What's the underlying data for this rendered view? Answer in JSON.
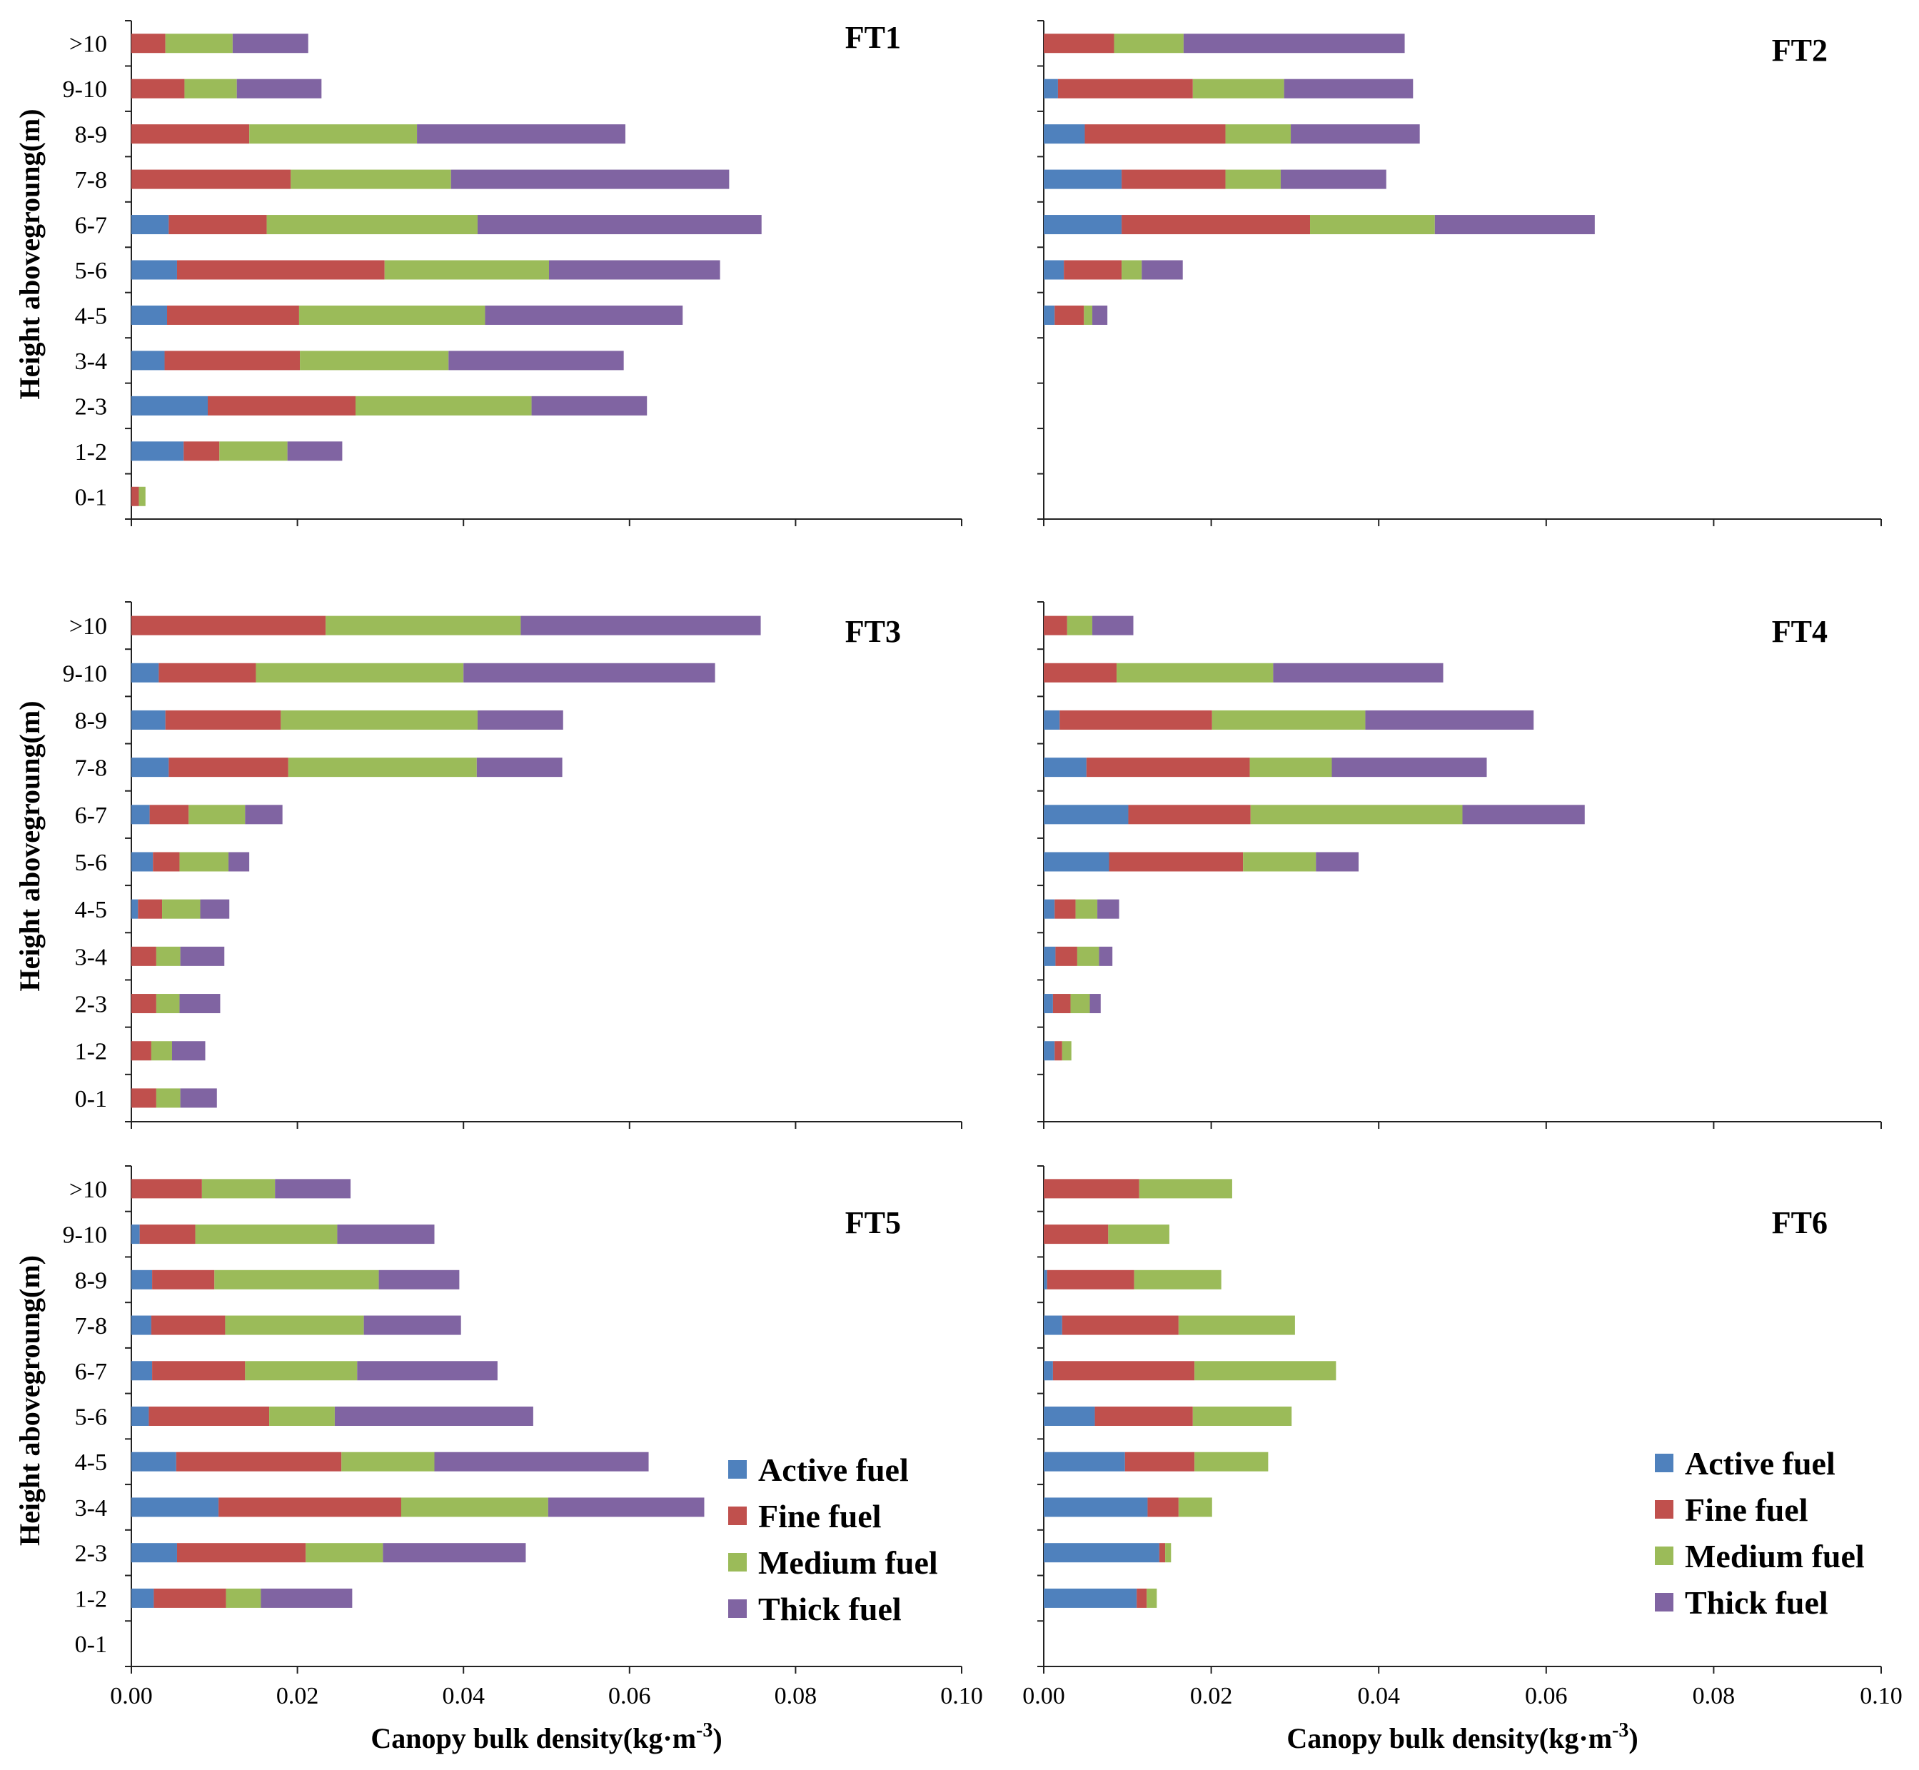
{
  "chart_data": {
    "type": "bar",
    "orientation": "horizontal",
    "stacked": true,
    "categories": [
      "0-1",
      "1-2",
      "2-3",
      "3-4",
      "4-5",
      "5-6",
      "6-7",
      "7-8",
      "8-9",
      "9-10",
      ">10"
    ],
    "series_names": [
      "Active fuel",
      "Fine fuel",
      "Medium fuel",
      "Thick fuel"
    ],
    "colors": [
      "#4f81bd",
      "#c0504d",
      "#9bbb59",
      "#8064a2"
    ],
    "xlim": [
      0,
      0.1
    ],
    "xticks": [
      "0.00",
      "0.02",
      "0.04",
      "0.06",
      "0.08",
      "0.10"
    ],
    "ylabel": "Height abovegroung(m)",
    "xlabel": "Canopy bulk density(kg·m",
    "xlabel_sup": "-3",
    "xlabel_tail": ")",
    "legend": [
      "Active fuel",
      "Fine fuel",
      "Medium fuel",
      "Thick fuel"
    ],
    "panels": [
      {
        "title": "FT1",
        "series": [
          {
            "name": "Active fuel",
            "values": [
              0,
              0.0063,
              0.0092,
              0.004,
              0.0043,
              0.0055,
              0.0045,
              0,
              0,
              0,
              0
            ]
          },
          {
            "name": "Fine fuel",
            "values": [
              0.0009,
              0.0043,
              0.0178,
              0.0163,
              0.0159,
              0.025,
              0.0118,
              0.0192,
              0.0142,
              0.0064,
              0.0041
            ]
          },
          {
            "name": "Medium fuel",
            "values": [
              0.0008,
              0.0082,
              0.0212,
              0.0179,
              0.0224,
              0.0198,
              0.0254,
              0.0193,
              0.0202,
              0.0063,
              0.0081
            ]
          },
          {
            "name": "Thick fuel",
            "values": [
              0,
              0.0066,
              0.0139,
              0.0211,
              0.0238,
              0.0206,
              0.0342,
              0.0335,
              0.0251,
              0.0102,
              0.0091
            ]
          }
        ]
      },
      {
        "title": "FT2",
        "series": [
          {
            "name": "Active fuel",
            "values": [
              0,
              0,
              0,
              0,
              0.0013,
              0.0024,
              0.0093,
              0.0093,
              0.0049,
              0.0017,
              0
            ]
          },
          {
            "name": "Fine fuel",
            "values": [
              0,
              0,
              0,
              0,
              0.0035,
              0.0069,
              0.0225,
              0.0124,
              0.0168,
              0.0161,
              0.0084
            ]
          },
          {
            "name": "Medium fuel",
            "values": [
              0,
              0,
              0,
              0,
              0.001,
              0.0024,
              0.0149,
              0.0066,
              0.0078,
              0.0109,
              0.0083
            ]
          },
          {
            "name": "Thick fuel",
            "values": [
              0,
              0,
              0,
              0,
              0.0018,
              0.0049,
              0.0191,
              0.0126,
              0.0154,
              0.0154,
              0.0264
            ]
          }
        ]
      },
      {
        "title": "FT3",
        "series": [
          {
            "name": "Active fuel",
            "values": [
              0,
              0,
              0,
              0,
              0.0008,
              0.0026,
              0.0022,
              0.0045,
              0.0041,
              0.0033,
              0
            ]
          },
          {
            "name": "Fine fuel",
            "values": [
              0.003,
              0.0024,
              0.003,
              0.003,
              0.0029,
              0.0032,
              0.0047,
              0.0144,
              0.0139,
              0.0117,
              0.0234
            ]
          },
          {
            "name": "Medium fuel",
            "values": [
              0.0029,
              0.0025,
              0.0028,
              0.0029,
              0.0046,
              0.0059,
              0.0068,
              0.0227,
              0.0237,
              0.025,
              0.0235
            ]
          },
          {
            "name": "Thick fuel",
            "values": [
              0.0044,
              0.004,
              0.0049,
              0.0053,
              0.0035,
              0.0025,
              0.0045,
              0.0103,
              0.0103,
              0.0303,
              0.0289
            ]
          }
        ]
      },
      {
        "title": "FT4",
        "series": [
          {
            "name": "Active fuel",
            "values": [
              0,
              0.0013,
              0.0011,
              0.0014,
              0.0013,
              0.0078,
              0.0101,
              0.0051,
              0.0019,
              0,
              0
            ]
          },
          {
            "name": "Fine fuel",
            "values": [
              0,
              0.0009,
              0.0021,
              0.0026,
              0.0025,
              0.016,
              0.0146,
              0.0195,
              0.0182,
              0.0087,
              0.0028
            ]
          },
          {
            "name": "Medium fuel",
            "values": [
              0,
              0.0011,
              0.0023,
              0.0026,
              0.0026,
              0.0087,
              0.0253,
              0.0098,
              0.0183,
              0.0187,
              0.003
            ]
          },
          {
            "name": "Thick fuel",
            "values": [
              0,
              0,
              0.0013,
              0.0016,
              0.0026,
              0.0051,
              0.0146,
              0.0185,
              0.0201,
              0.0203,
              0.0049
            ]
          }
        ]
      },
      {
        "title": "FT5",
        "series": [
          {
            "name": "Active fuel",
            "values": [
              0,
              0.0027,
              0.0055,
              0.0105,
              0.0054,
              0.0021,
              0.0025,
              0.0024,
              0.0025,
              0.001,
              0
            ]
          },
          {
            "name": "Fine fuel",
            "values": [
              0,
              0.0087,
              0.0155,
              0.022,
              0.0199,
              0.0145,
              0.0112,
              0.0089,
              0.0075,
              0.0067,
              0.0085
            ]
          },
          {
            "name": "Medium fuel",
            "values": [
              0,
              0.0042,
              0.0093,
              0.0177,
              0.0112,
              0.0079,
              0.0135,
              0.0167,
              0.0198,
              0.0171,
              0.0088
            ]
          },
          {
            "name": "Thick fuel",
            "values": [
              0,
              0.011,
              0.0172,
              0.0188,
              0.0258,
              0.0239,
              0.0169,
              0.0117,
              0.0097,
              0.0117,
              0.0091
            ]
          }
        ]
      },
      {
        "title": "FT6",
        "series": [
          {
            "name": "Active fuel",
            "values": [
              0,
              0.0111,
              0.0138,
              0.0124,
              0.0097,
              0.0061,
              0.0011,
              0.0022,
              0.0004,
              0,
              0
            ]
          },
          {
            "name": "Fine fuel",
            "values": [
              0,
              0.0012,
              0.0007,
              0.0037,
              0.0083,
              0.0117,
              0.0169,
              0.0139,
              0.0104,
              0.0077,
              0.0114
            ]
          },
          {
            "name": "Medium fuel",
            "values": [
              0,
              0.0012,
              0.0007,
              0.004,
              0.0088,
              0.0118,
              0.0169,
              0.0139,
              0.0104,
              0.0073,
              0.0111
            ]
          },
          {
            "name": "Thick fuel",
            "values": [
              0,
              0,
              0,
              0,
              0,
              0,
              0,
              0,
              0,
              0,
              0
            ]
          }
        ]
      }
    ]
  }
}
